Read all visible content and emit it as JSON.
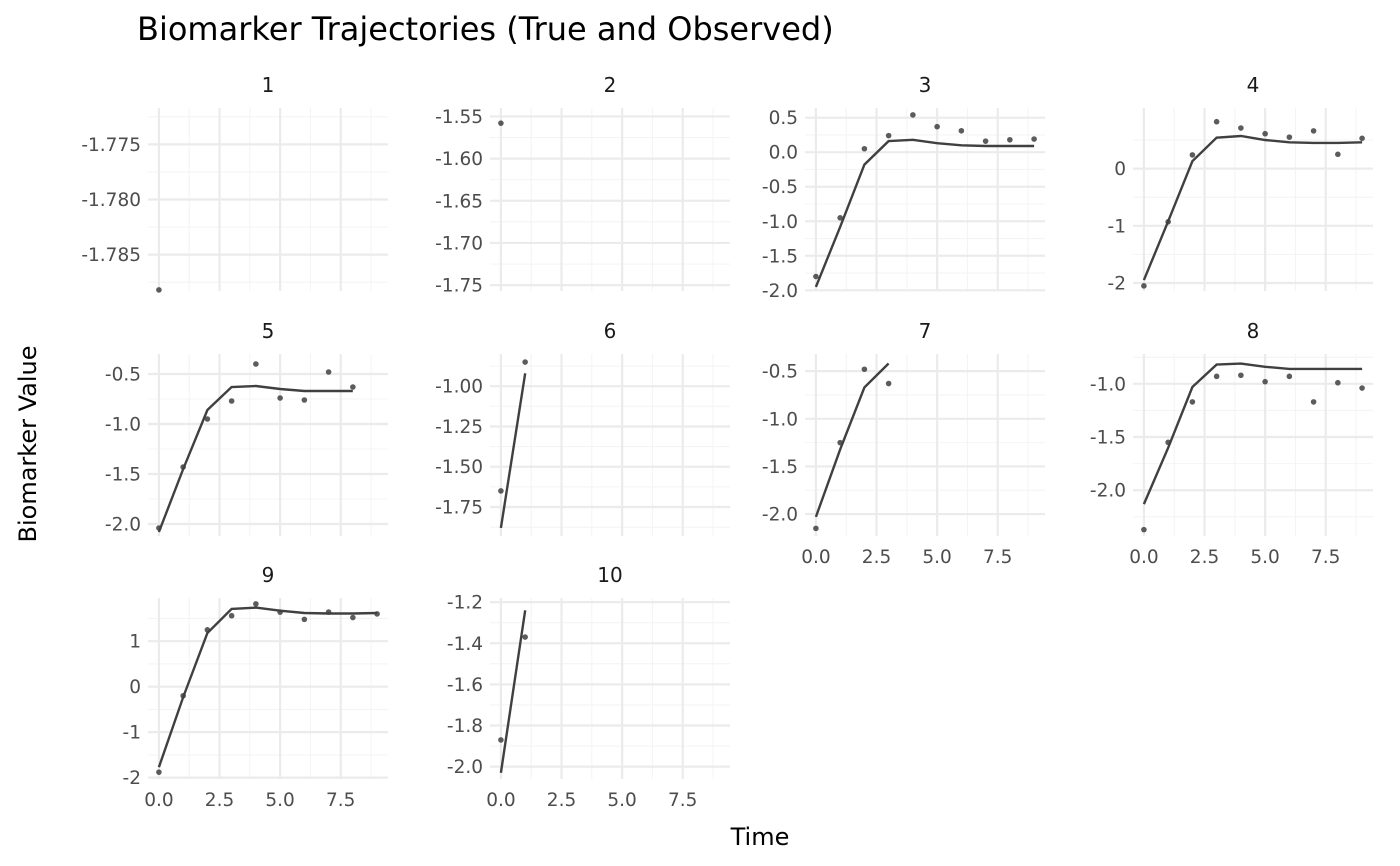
{
  "chart_data": {
    "type": "line",
    "title": "Biomarker Trajectories (True and Observed)",
    "xlabel": "Time",
    "ylabel": "Biomarker Value",
    "xlim": [
      -0.45,
      9.45
    ],
    "x_ticks": [
      0,
      2.5,
      5,
      7.5
    ],
    "x_tick_labels": [
      "0.0",
      "2.5",
      "5.0",
      "7.5"
    ],
    "grid": true,
    "legend": "none",
    "layout": {
      "ncol": 4,
      "nrow": 3,
      "x_tick_label_panels": [
        "7",
        "8",
        "9",
        "10"
      ]
    },
    "series_styles": {
      "true": {
        "kind": "line",
        "color": "#404040"
      },
      "observed": {
        "kind": "points",
        "color": "#404040"
      }
    },
    "panels": [
      {
        "id": "1",
        "ylim": [
          -1.7883,
          -1.7717
        ],
        "y_ticks": [
          -1.775,
          -1.78,
          -1.785
        ],
        "y_tick_labels": [
          "-1.775",
          "-1.780",
          "-1.785"
        ],
        "true": {
          "x": [],
          "y": []
        },
        "observed": {
          "x": [
            0
          ],
          "y": [
            -1.7882
          ]
        }
      },
      {
        "id": "2",
        "ylim": [
          -1.757,
          -1.54
        ],
        "y_ticks": [
          -1.55,
          -1.6,
          -1.65,
          -1.7,
          -1.75
        ],
        "y_tick_labels": [
          "-1.55",
          "-1.60",
          "-1.65",
          "-1.70",
          "-1.75"
        ],
        "true": {
          "x": [],
          "y": []
        },
        "observed": {
          "x": [
            0
          ],
          "y": [
            -1.558
          ]
        }
      },
      {
        "id": "3",
        "ylim": [
          -2.01,
          0.64
        ],
        "y_ticks": [
          0.5,
          0,
          -0.5,
          -1,
          -1.5,
          -2
        ],
        "y_tick_labels": [
          "0.5",
          "0.0",
          "-0.5",
          "-1.0",
          "-1.5",
          "-2.0"
        ],
        "true": {
          "x": [
            0,
            1,
            2,
            3,
            4,
            5,
            6,
            7,
            8,
            9
          ],
          "y": [
            -1.95,
            -1.08,
            -0.18,
            0.16,
            0.18,
            0.13,
            0.1,
            0.09,
            0.09,
            0.09
          ]
        },
        "observed": {
          "x": [
            0,
            1,
            2,
            3,
            4,
            5,
            6,
            7,
            8,
            9
          ],
          "y": [
            -1.8,
            -0.95,
            0.05,
            0.24,
            0.54,
            0.37,
            0.31,
            0.16,
            0.18,
            0.19
          ]
        }
      },
      {
        "id": "4",
        "ylim": [
          -2.14,
          1.06
        ],
        "y_ticks": [
          0,
          -1,
          -2
        ],
        "y_tick_labels": [
          "0",
          "-1",
          "-2"
        ],
        "true": {
          "x": [
            0,
            1,
            2,
            3,
            4,
            5,
            6,
            7,
            8,
            9
          ],
          "y": [
            -1.95,
            -0.92,
            0.13,
            0.54,
            0.57,
            0.5,
            0.46,
            0.45,
            0.45,
            0.46
          ]
        },
        "observed": {
          "x": [
            0,
            1,
            2,
            3,
            4,
            5,
            6,
            7,
            8,
            9
          ],
          "y": [
            -2.05,
            -0.93,
            0.24,
            0.82,
            0.71,
            0.61,
            0.55,
            0.66,
            0.25,
            0.53
          ]
        }
      },
      {
        "id": "5",
        "ylim": [
          -2.12,
          -0.3
        ],
        "y_ticks": [
          -0.5,
          -1,
          -1.5,
          -2
        ],
        "y_tick_labels": [
          "-0.5",
          "-1.0",
          "-1.5",
          "-2.0"
        ],
        "true": {
          "x": [
            0,
            1,
            2,
            3,
            4,
            5,
            6,
            7,
            8
          ],
          "y": [
            -2.08,
            -1.45,
            -0.86,
            -0.63,
            -0.62,
            -0.65,
            -0.67,
            -0.67,
            -0.67
          ]
        },
        "observed": {
          "x": [
            0,
            1,
            2,
            3,
            4,
            5,
            6,
            7,
            8
          ],
          "y": [
            -2.04,
            -1.43,
            -0.95,
            -0.77,
            -0.4,
            -0.74,
            -0.76,
            -0.48,
            -0.63
          ]
        }
      },
      {
        "id": "6",
        "ylim": [
          -1.93,
          -0.8
        ],
        "y_ticks": [
          -1,
          -1.25,
          -1.5,
          -1.75
        ],
        "y_tick_labels": [
          "-1.00",
          "-1.25",
          "-1.50",
          "-1.75"
        ],
        "true": {
          "x": [
            0,
            1
          ],
          "y": [
            -1.88,
            -0.92
          ]
        },
        "observed": {
          "x": [
            0,
            1
          ],
          "y": [
            -1.65,
            -0.85
          ]
        }
      },
      {
        "id": "7",
        "ylim": [
          -2.23,
          -0.32
        ],
        "y_ticks": [
          -0.5,
          -1,
          -1.5,
          -2
        ],
        "y_tick_labels": [
          "-0.5",
          "-1.0",
          "-1.5",
          "-2.0"
        ],
        "true": {
          "x": [
            0,
            1,
            2,
            3
          ],
          "y": [
            -2.03,
            -1.32,
            -0.67,
            -0.42
          ]
        },
        "observed": {
          "x": [
            0,
            1,
            2,
            3
          ],
          "y": [
            -2.15,
            -1.25,
            -0.48,
            -0.63
          ]
        }
      },
      {
        "id": "8",
        "ylim": [
          -2.43,
          -0.72
        ],
        "y_ticks": [
          -1,
          -1.5,
          -2
        ],
        "y_tick_labels": [
          "-1.0",
          "-1.5",
          "-2.0"
        ],
        "true": {
          "x": [
            0,
            1,
            2,
            3,
            4,
            5,
            6,
            7,
            8,
            9
          ],
          "y": [
            -2.13,
            -1.6,
            -1.03,
            -0.82,
            -0.81,
            -0.84,
            -0.86,
            -0.86,
            -0.86,
            -0.86
          ]
        },
        "observed": {
          "x": [
            0,
            1,
            2,
            3,
            4,
            5,
            6,
            7,
            8,
            9
          ],
          "y": [
            -2.37,
            -1.55,
            -1.17,
            -0.93,
            -0.92,
            -0.98,
            -0.93,
            -1.17,
            -0.99,
            -1.04
          ]
        }
      },
      {
        "id": "9",
        "ylim": [
          -2.03,
          1.95
        ],
        "y_ticks": [
          1,
          0,
          -1,
          -2
        ],
        "y_tick_labels": [
          "1",
          "0",
          "-1",
          "-2"
        ],
        "true": {
          "x": [
            0,
            1,
            2,
            3,
            4,
            5,
            6,
            7,
            8,
            9
          ],
          "y": [
            -1.77,
            -0.23,
            1.18,
            1.71,
            1.74,
            1.67,
            1.62,
            1.61,
            1.61,
            1.62
          ]
        },
        "observed": {
          "x": [
            0,
            1,
            2,
            3,
            4,
            5,
            6,
            7,
            8,
            9
          ],
          "y": [
            -1.88,
            -0.2,
            1.25,
            1.56,
            1.82,
            1.64,
            1.48,
            1.64,
            1.52,
            1.6
          ]
        }
      },
      {
        "id": "10",
        "ylim": [
          -2.06,
          -1.18
        ],
        "y_ticks": [
          -1.2,
          -1.4,
          -1.6,
          -1.8,
          -2
        ],
        "y_tick_labels": [
          "-1.2",
          "-1.4",
          "-1.6",
          "-1.8",
          "-2.0"
        ],
        "true": {
          "x": [
            0,
            1
          ],
          "y": [
            -2.03,
            -1.24
          ]
        },
        "observed": {
          "x": [
            0,
            1
          ],
          "y": [
            -1.87,
            -1.37
          ]
        }
      }
    ]
  }
}
